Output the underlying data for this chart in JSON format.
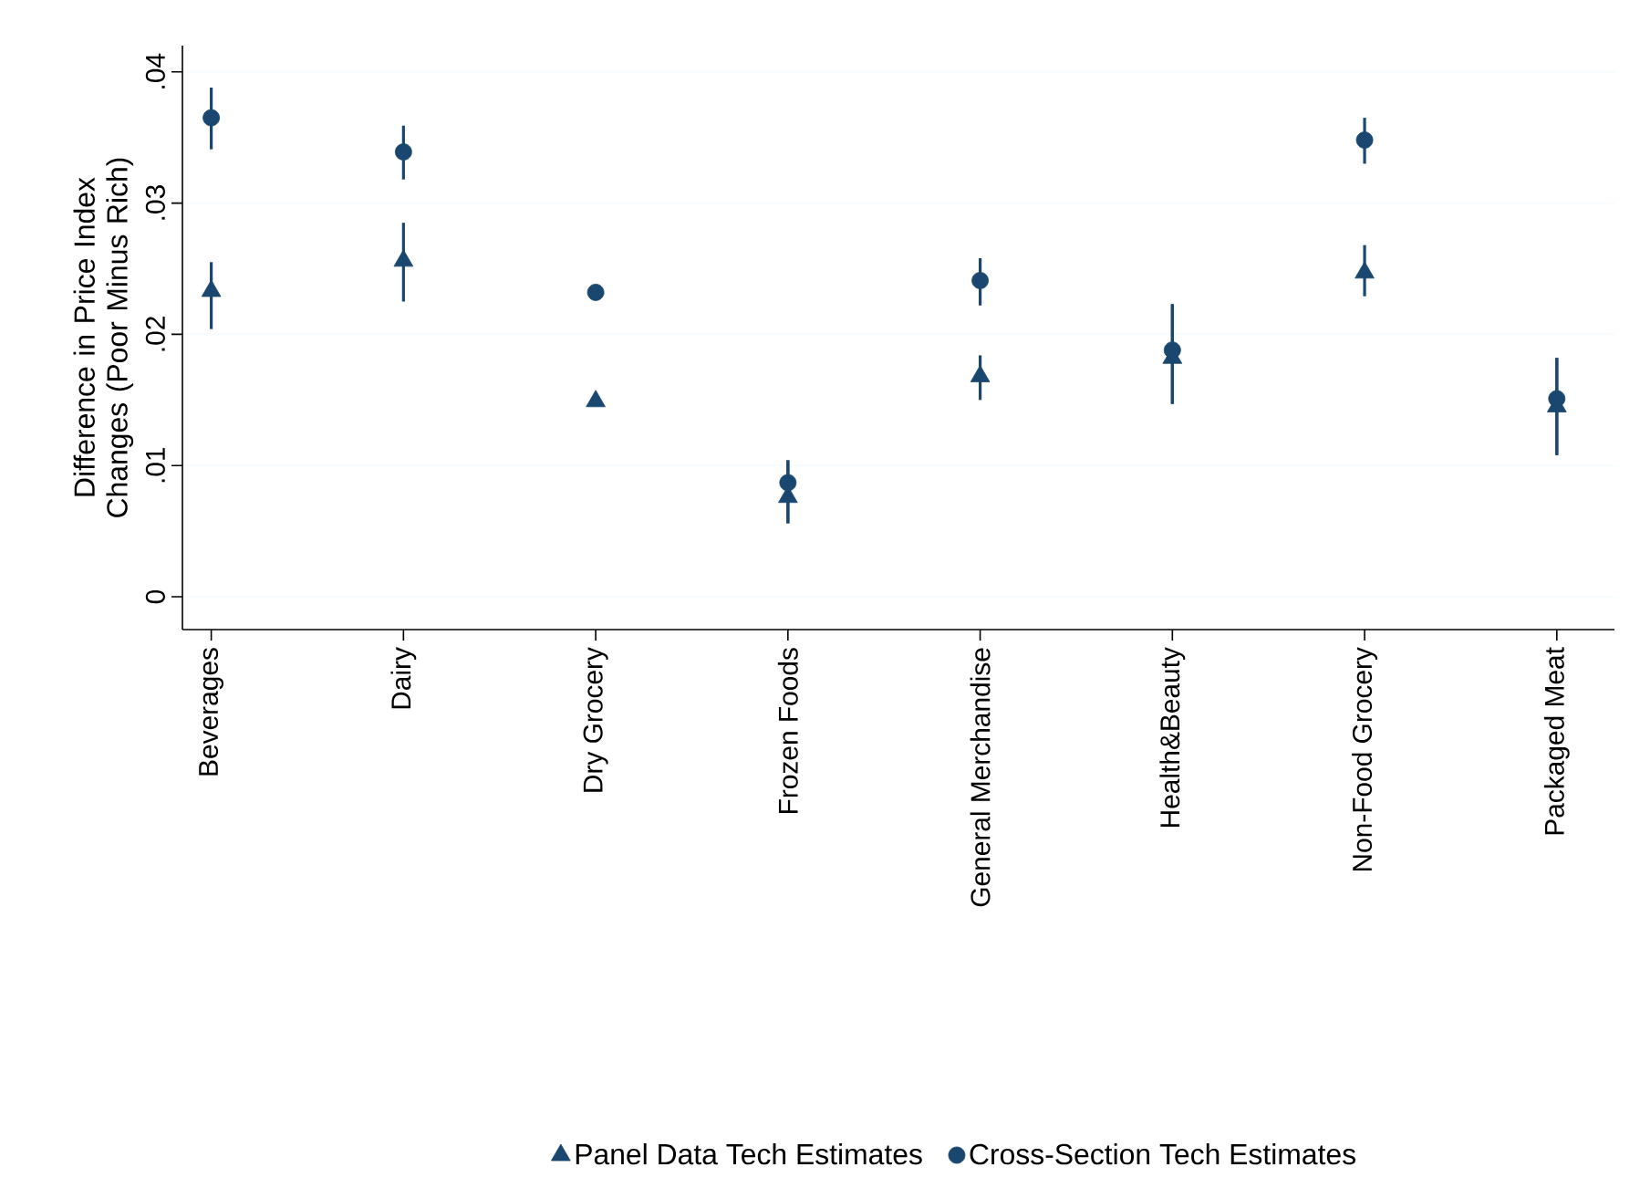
{
  "chart_data": {
    "type": "scatter",
    "ylabel": "Difference in Price Index Changes (Poor Minus Rich)",
    "categories": [
      "Beverages",
      "Dairy",
      "Dry Grocery",
      "Frozen Foods",
      "General Merchandise",
      "Health&Beauty",
      "Non-Food Grocery",
      "Packaged Meat"
    ],
    "series": [
      {
        "name": "Panel Data Tech Estimates",
        "color": "#1a476f",
        "marker": "triangle",
        "values": [
          0.0233,
          0.0256,
          0.0149,
          0.0076,
          0.0168,
          0.0182,
          0.0247,
          0.0145
        ],
        "errors": [
          [
            0.0204,
            0.0255
          ],
          [
            0.0225,
            0.0285
          ],
          [
            0.0147,
            0.0151
          ],
          [
            0.0056,
            0.0104
          ],
          [
            0.015,
            0.0184
          ],
          [
            0.0147,
            0.0223
          ],
          [
            0.0229,
            0.0268
          ],
          [
            0.0108,
            0.0182
          ]
        ]
      },
      {
        "name": "Cross-Section Tech Estimates",
        "color": "#1a476f",
        "marker": "circle",
        "values": [
          0.0365,
          0.0339,
          0.0232,
          0.0087,
          0.0241,
          0.0188,
          0.0348,
          0.0151
        ],
        "errors": [
          [
            0.0341,
            0.0388
          ],
          [
            0.0318,
            0.0359
          ],
          [
            0.0229,
            0.0235
          ],
          [
            0.0056,
            0.0104
          ],
          [
            0.0222,
            0.0258
          ],
          [
            0.0147,
            0.0223
          ],
          [
            0.033,
            0.0365
          ],
          [
            0.0108,
            0.0182
          ]
        ]
      }
    ],
    "ylim": [
      -0.0025,
      0.042
    ],
    "yticks": [
      {
        "value": 0,
        "label": "0"
      },
      {
        "value": 0.01,
        "label": ".01"
      },
      {
        "value": 0.02,
        "label": ".02"
      },
      {
        "value": 0.03,
        "label": ".03"
      },
      {
        "value": 0.04,
        "label": ".04"
      }
    ],
    "grid": "y",
    "legend": "bottom"
  }
}
